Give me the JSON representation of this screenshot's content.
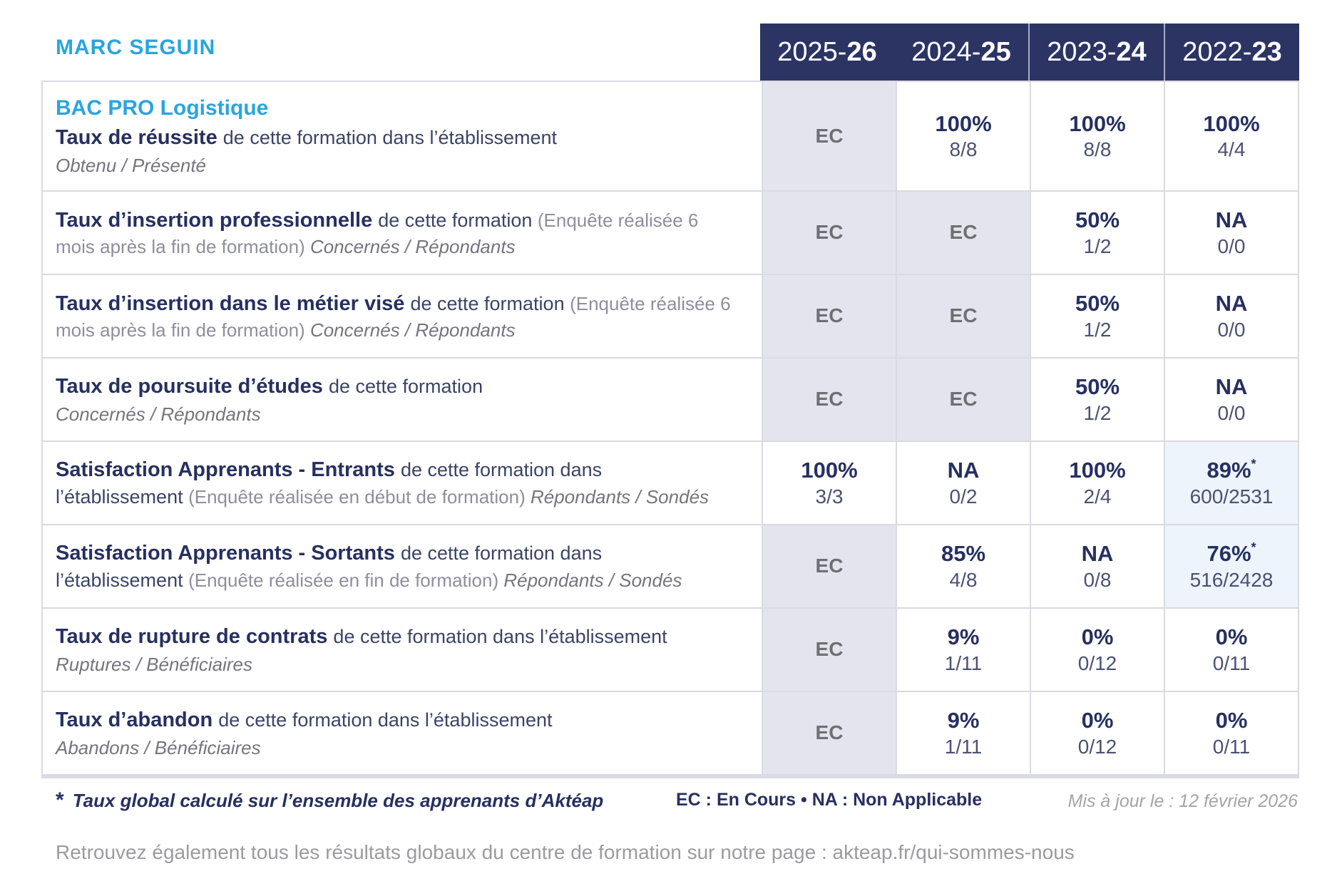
{
  "page": {
    "school_name": "MARC SEGUIN",
    "program_title": "BAC PRO Logistique"
  },
  "header": {
    "years": [
      {
        "prefix": "2025-",
        "suffix": "26"
      },
      {
        "prefix": "2024-",
        "suffix": "25"
      },
      {
        "prefix": "2023-",
        "suffix": "24"
      },
      {
        "prefix": "2022-",
        "suffix": "23"
      }
    ]
  },
  "table": {
    "rows": [
      {
        "title": "Taux de réussite ",
        "description": "de cette formation dans l’établissement",
        "ratio_label": "Obtenu / Présenté",
        "values": [
          {
            "main": "EC"
          },
          {
            "main": "100%",
            "fraction": "8/8"
          },
          {
            "main": "100%",
            "fraction": "8/8"
          },
          {
            "main": "100%",
            "fraction": "4/4"
          }
        ]
      },
      {
        "title": "Taux d’insertion professionnelle ",
        "description": "de cette formation ",
        "survey_note": "(Enquête réalisée 6 mois après la fin de formation) ",
        "ratio_label": "Concernés / Répondants",
        "values": [
          {
            "main": "EC"
          },
          {
            "main": "EC"
          },
          {
            "main": "50%",
            "fraction": "1/2"
          },
          {
            "main": "NA",
            "fraction": "0/0"
          }
        ]
      },
      {
        "title": "Taux d’insertion dans le métier visé ",
        "description": "de cette formation ",
        "survey_note": "(Enquête réalisée 6 mois après la fin de formation) ",
        "ratio_label": "Concernés / Répondants",
        "values": [
          {
            "main": "EC"
          },
          {
            "main": "EC"
          },
          {
            "main": "50%",
            "fraction": "1/2"
          },
          {
            "main": "NA",
            "fraction": "0/0"
          }
        ]
      },
      {
        "title": "Taux de poursuite d’études ",
        "description": "de cette formation",
        "ratio_label": "Concernés / Répondants",
        "values": [
          {
            "main": "EC"
          },
          {
            "main": "EC"
          },
          {
            "main": "50%",
            "fraction": "1/2"
          },
          {
            "main": "NA",
            "fraction": "0/0"
          }
        ]
      },
      {
        "title": "Satisfaction Apprenants - Entrants ",
        "description": "de cette formation dans l’établissement ",
        "survey_note": "(Enquête réalisée en début de formation) ",
        "ratio_label": "Répondants / Sondés",
        "values": [
          {
            "main": "100%",
            "fraction": "3/3"
          },
          {
            "main": "NA",
            "fraction": "0/2"
          },
          {
            "main": "100%",
            "fraction": "2/4"
          },
          {
            "main": "89%",
            "star": "*",
            "fraction": "600/2531"
          }
        ]
      },
      {
        "title": "Satisfaction Apprenants - Sortants ",
        "description": "de cette formation dans l’établissement ",
        "survey_note": "(Enquête réalisée en fin de formation) ",
        "ratio_label": "Répondants / Sondés",
        "values": [
          {
            "main": "EC"
          },
          {
            "main": "85%",
            "fraction": "4/8"
          },
          {
            "main": "NA",
            "fraction": "0/8"
          },
          {
            "main": "76%",
            "star": "*",
            "fraction": "516/2428"
          }
        ]
      },
      {
        "title": "Taux de rupture de contrats ",
        "description": "de cette formation dans l’établissement",
        "ratio_label": "Ruptures / Bénéficiaires",
        "values": [
          {
            "main": "EC"
          },
          {
            "main": "9%",
            "fraction": "1/11"
          },
          {
            "main": "0%",
            "fraction": "0/12"
          },
          {
            "main": "0%",
            "fraction": "0/11"
          }
        ]
      },
      {
        "title": "Taux d’abandon ",
        "description": "de cette formation dans l’établissement",
        "ratio_label": "Abandons / Bénéficiaires",
        "values": [
          {
            "main": "EC"
          },
          {
            "main": "9%",
            "fraction": "1/11"
          },
          {
            "main": "0%",
            "fraction": "0/12"
          },
          {
            "main": "0%",
            "fraction": "0/11"
          }
        ]
      }
    ]
  },
  "footer": {
    "star": "*",
    "footnote": "Taux global calculé sur l’ensemble des apprenants d’Aktéap",
    "legend": "EC : En Cours  •  NA : Non Applicable",
    "updated": "Mis à jour le : 12 février 2026",
    "global_note": "Retrouvez également tous les résultats globaux du centre de formation sur notre page : akteap.fr/qui-sommes-nous"
  },
  "colors": {
    "accent_blue": "#29A5DE",
    "navy": "#263060",
    "header_background": "#2B3463",
    "ec_cell_background": "#E4E4EE",
    "highlight_cell_background": "#EDF4FB",
    "border": "#D9DAE3"
  }
}
